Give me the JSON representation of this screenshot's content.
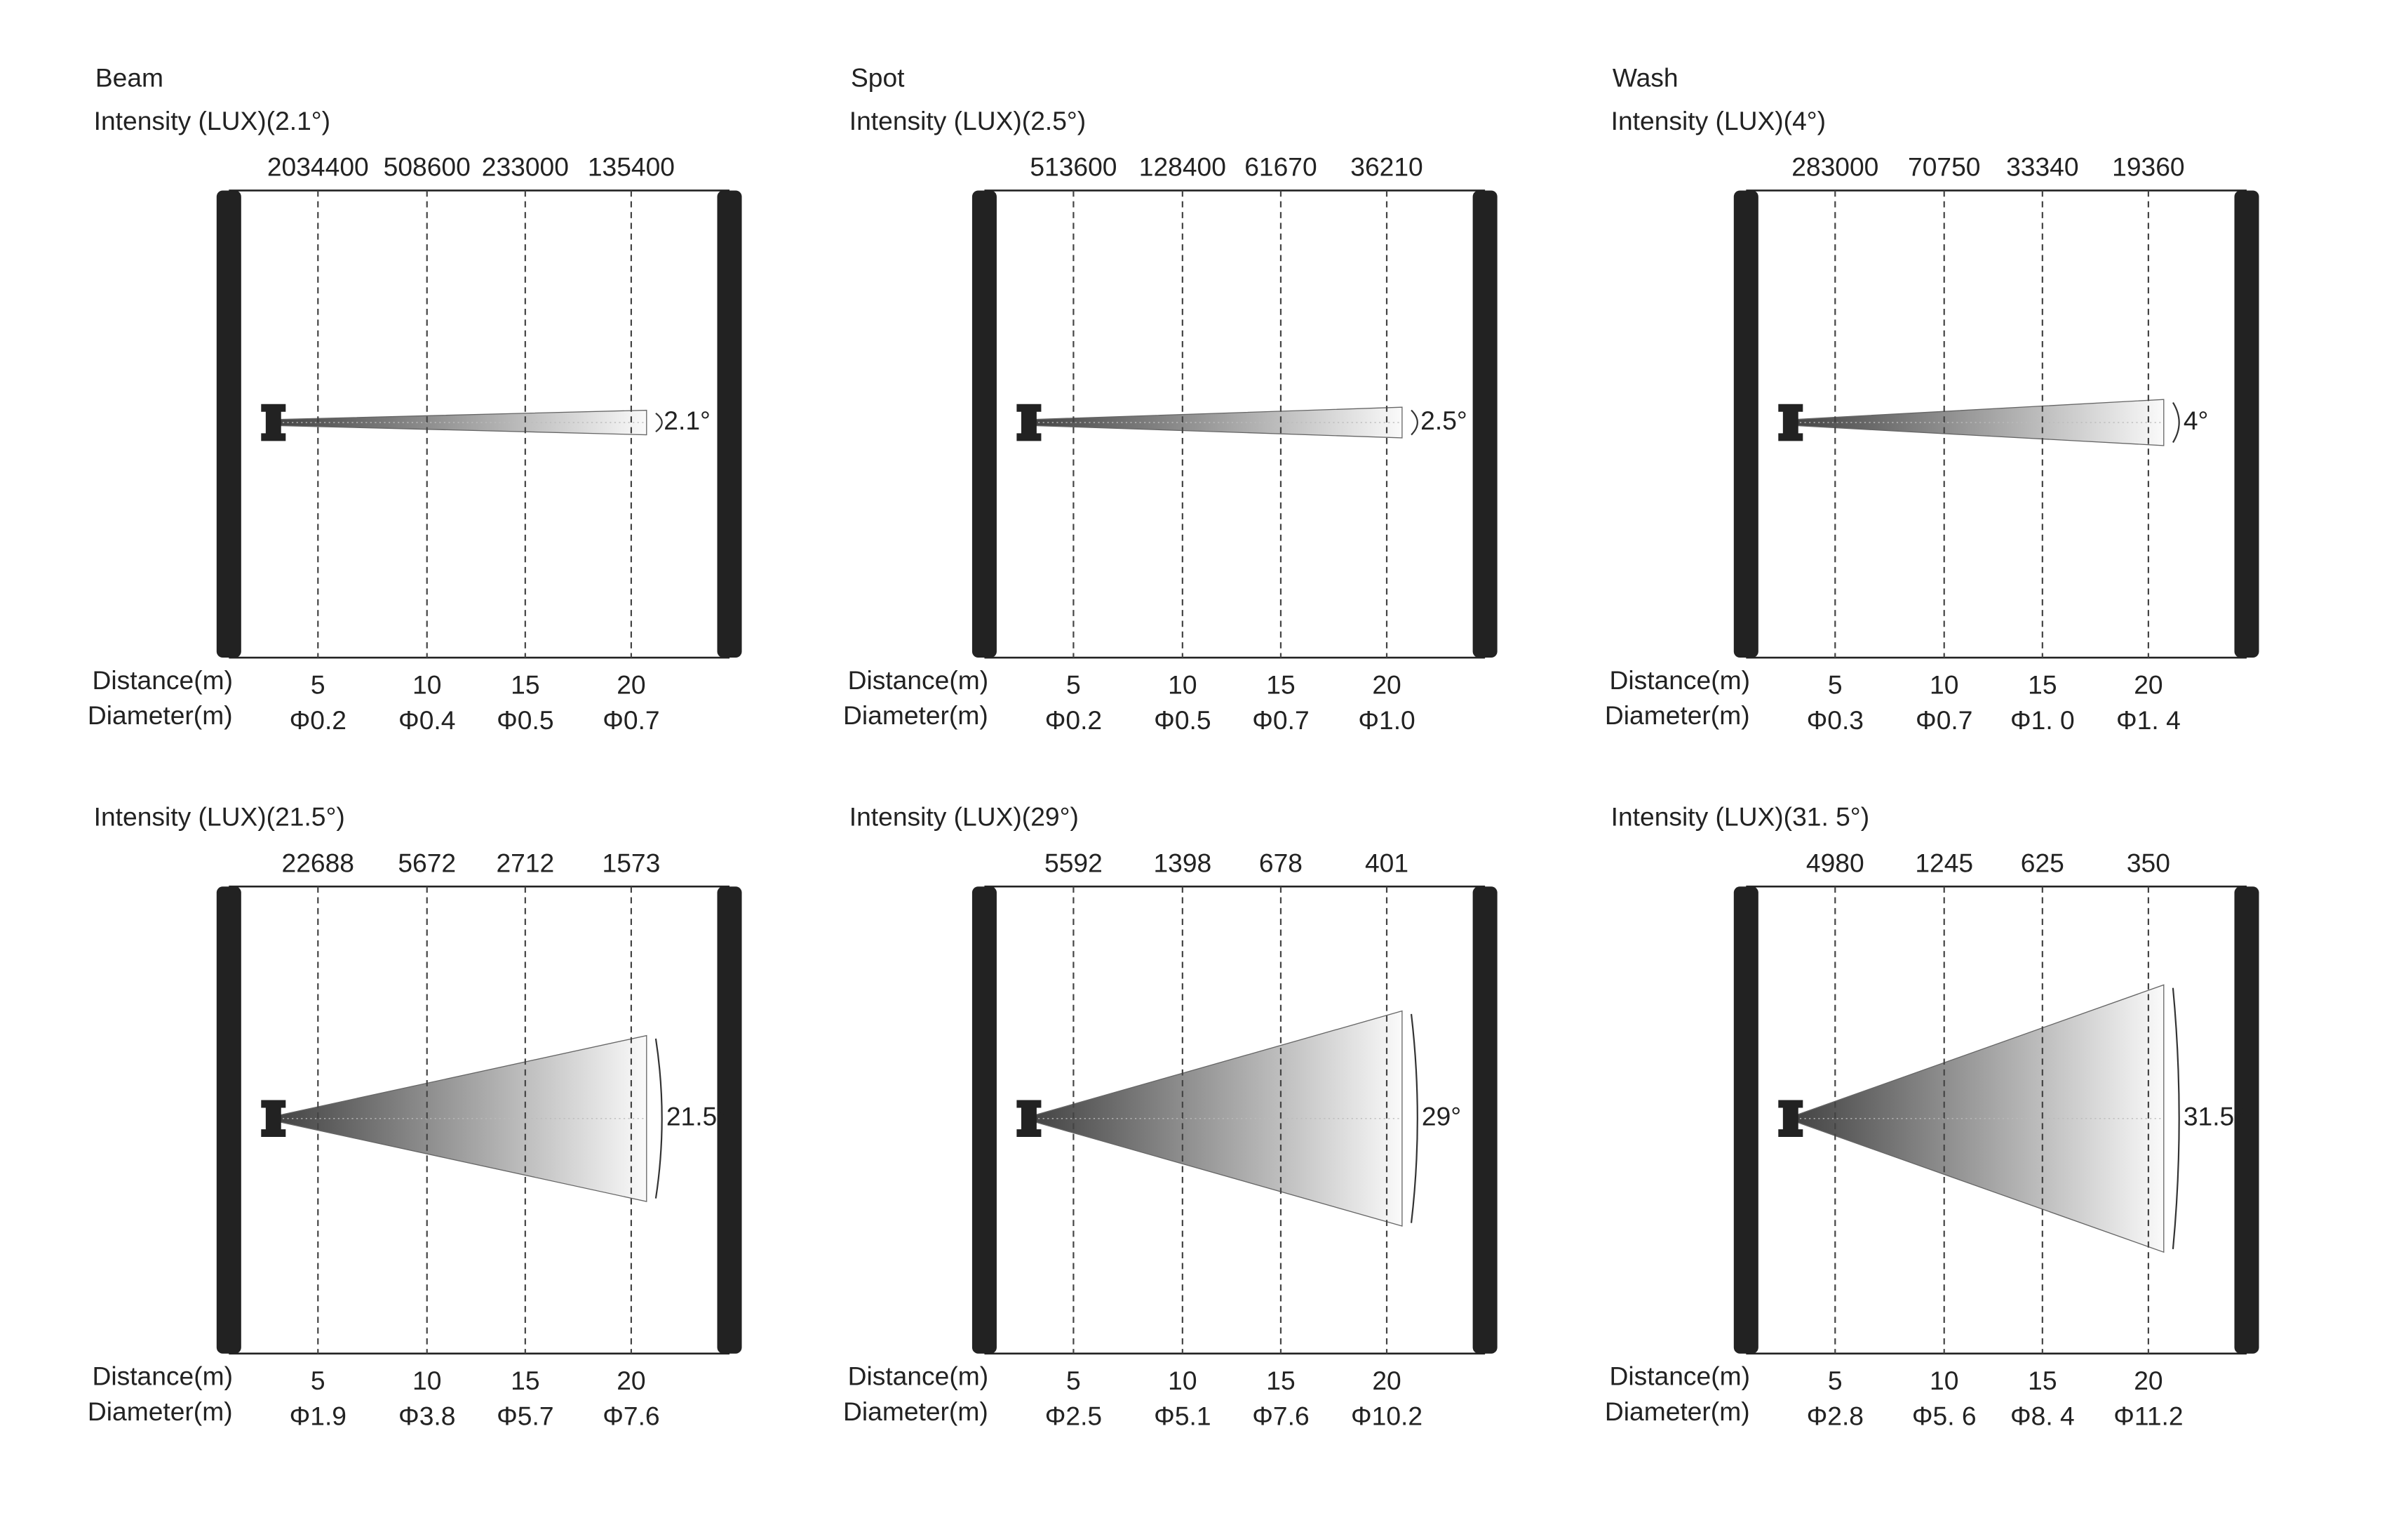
{
  "distance_label": "Distance(m)",
  "diameter_label": "Diameter(m)",
  "panels": [
    {
      "title": "Beam",
      "intensity_label": "Intensity (LUX)(2.1°)",
      "intensities": [
        2034400,
        508600,
        233000,
        135400
      ],
      "distances": [
        5,
        10,
        15,
        20
      ],
      "diameters": [
        "Φ0.2",
        "Φ0.4",
        "Φ0.5",
        "Φ0.7"
      ],
      "angle": "2.1°"
    },
    {
      "title": "Spot",
      "intensity_label": "Intensity (LUX)(2.5°)",
      "intensities": [
        513600,
        128400,
        61670,
        36210
      ],
      "distances": [
        5,
        10,
        15,
        20
      ],
      "diameters": [
        "Φ0.2",
        "Φ0.5",
        "Φ0.7",
        "Φ1.0"
      ],
      "angle": "2.5°"
    },
    {
      "title": "Wash",
      "intensity_label": "Intensity (LUX)(4°)",
      "intensities": [
        283000,
        70750,
        33340,
        19360
      ],
      "distances": [
        5,
        10,
        15,
        20
      ],
      "diameters": [
        "Φ0.3",
        "Φ0.7",
        "Φ1. 0",
        "Φ1. 4"
      ],
      "angle": "4°"
    },
    {
      "intensity_label": "Intensity (LUX)(21.5°)",
      "intensities": [
        22688,
        5672,
        2712,
        1573
      ],
      "distances": [
        5,
        10,
        15,
        20
      ],
      "diameters": [
        "Φ1.9",
        "Φ3.8",
        "Φ5.7",
        "Φ7.6"
      ],
      "angle": "21.5°"
    },
    {
      "intensity_label": "Intensity (LUX)(29°)",
      "intensities": [
        5592,
        1398,
        678,
        401
      ],
      "distances": [
        5,
        10,
        15,
        20
      ],
      "diameters": [
        "Φ2.5",
        "Φ5.1",
        "Φ7.6",
        "Φ10.2"
      ],
      "angle": "29°"
    },
    {
      "intensity_label": "Intensity (LUX)(31. 5°)",
      "intensities": [
        4980,
        1245,
        625,
        350
      ],
      "distances": [
        5,
        10,
        15,
        20
      ],
      "diameters": [
        "Φ2.8",
        "Φ5. 6",
        "Φ8. 4",
        "Φ11.2"
      ],
      "angle": "31.5°"
    }
  ]
}
